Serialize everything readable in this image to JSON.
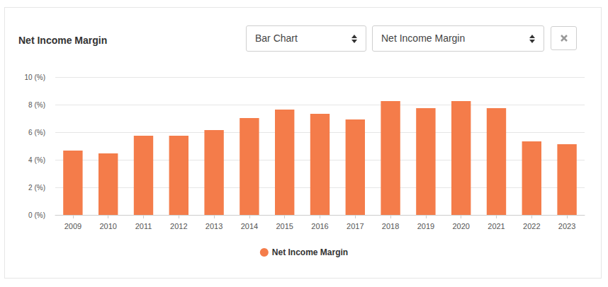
{
  "chart_data": {
    "type": "bar",
    "title": "Net Income Margin",
    "annotations": [
      "Bar Chart",
      "Net Income Margin"
    ],
    "categories": [
      "2009",
      "2010",
      "2011",
      "2012",
      "2013",
      "2014",
      "2015",
      "2016",
      "2017",
      "2018",
      "2019",
      "2020",
      "2021",
      "2022",
      "2023"
    ],
    "series": [
      {
        "name": "Net Income Margin",
        "color": "#f47c4a",
        "values": [
          4.67,
          4.46,
          5.74,
          5.74,
          6.15,
          7.03,
          7.64,
          7.33,
          6.92,
          8.26,
          7.74,
          8.26,
          7.74,
          5.33,
          5.13
        ]
      }
    ],
    "ylim": [
      0,
      10
    ],
    "yticks": [
      {
        "value": 0,
        "label": "0 (%)"
      },
      {
        "value": 2,
        "label": "2 (%)"
      },
      {
        "value": 4,
        "label": "4 (%)"
      },
      {
        "value": 6,
        "label": "6 (%)"
      },
      {
        "value": 8,
        "label": "8 (%)"
      },
      {
        "value": 10,
        "label": "10 (%)"
      }
    ],
    "grid": true,
    "legend": "bottom"
  }
}
